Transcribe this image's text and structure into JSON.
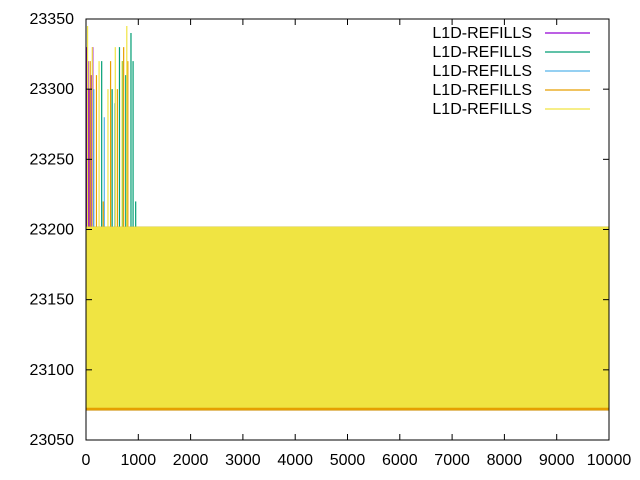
{
  "chart_data": {
    "type": "line",
    "title": "",
    "xlabel": "",
    "ylabel": "",
    "xlim": [
      0,
      10000
    ],
    "ylim": [
      23050,
      23350
    ],
    "x_ticks": [
      0,
      1000,
      2000,
      3000,
      4000,
      5000,
      6000,
      7000,
      8000,
      9000,
      10000
    ],
    "y_ticks": [
      23050,
      23100,
      23150,
      23200,
      23250,
      23300,
      23350
    ],
    "x_tick_labels": [
      "0",
      "1000",
      "2000",
      "3000",
      "4000",
      "5000",
      "6000",
      "7000",
      "8000",
      "9000",
      "10000"
    ],
    "y_tick_labels": [
      "23050",
      "23100",
      "23150",
      "23200",
      "23250",
      "23300",
      "23350"
    ],
    "grid": false,
    "legend_position": "top-right",
    "series": [
      {
        "name": "L1D-REFILLS",
        "color": "#9400d3",
        "spikes": [
          [
            20,
            23330
          ],
          [
            40,
            23320
          ],
          [
            60,
            23300
          ],
          [
            100,
            23310
          ],
          [
            130,
            23330
          ]
        ],
        "band": {
          "x_end": 10000,
          "low": 23071,
          "high": 23202
        }
      },
      {
        "name": "L1D-REFILLS",
        "color": "#009e73",
        "spikes": [
          [
            300,
            23320
          ],
          [
            500,
            23300
          ],
          [
            640,
            23330
          ],
          [
            700,
            23320
          ],
          [
            760,
            23310
          ],
          [
            860,
            23340
          ],
          [
            900,
            23320
          ],
          [
            950,
            23220
          ]
        ],
        "band": {
          "x_end": 10000,
          "low": 23071,
          "high": 23202
        }
      },
      {
        "name": "L1D-REFILLS",
        "color": "#56b4e9",
        "spikes": [
          [
            150,
            23300
          ],
          [
            350,
            23280
          ],
          [
            550,
            23290
          ]
        ],
        "band": {
          "x_end": 10000,
          "low": 23071,
          "high": 23202
        }
      },
      {
        "name": "L1D-REFILLS",
        "color": "#e69f00",
        "spikes": [
          [
            80,
            23320
          ],
          [
            200,
            23310
          ],
          [
            330,
            23220
          ],
          [
            470,
            23320
          ],
          [
            600,
            23300
          ],
          [
            720,
            23330
          ],
          [
            800,
            23320
          ]
        ],
        "band": {
          "x_end": 10000,
          "low": 23071,
          "high": 23202
        }
      },
      {
        "name": "L1D-REFILLS",
        "color": "#f0e442",
        "spikes": [
          [
            30,
            23345
          ],
          [
            120,
            23330
          ],
          [
            250,
            23320
          ],
          [
            420,
            23300
          ],
          [
            560,
            23330
          ],
          [
            690,
            23320
          ],
          [
            780,
            23345
          ]
        ],
        "band": {
          "x_end": 10000,
          "low": 23073,
          "high": 23202
        }
      }
    ]
  }
}
